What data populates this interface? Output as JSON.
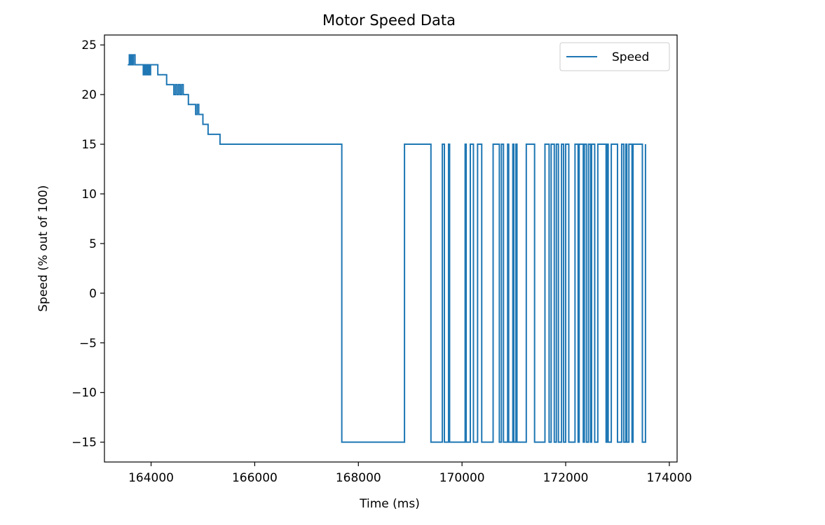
{
  "chart_data": {
    "type": "line",
    "title": "Motor Speed Data",
    "xlabel": "Time (ms)",
    "ylabel": "Speed (% out of 100)",
    "xlim": [
      163100,
      174150
    ],
    "ylim": [
      -17,
      26
    ],
    "xticks": [
      164000,
      166000,
      168000,
      170000,
      172000,
      174000
    ],
    "yticks": [
      -15,
      -10,
      -5,
      0,
      5,
      10,
      15,
      20,
      25
    ],
    "xtick_labels": [
      "164000",
      "166000",
      "168000",
      "170000",
      "172000",
      "174000"
    ],
    "ytick_labels": [
      "−15",
      "−10",
      "−5",
      "0",
      "5",
      "10",
      "15",
      "20",
      "25"
    ],
    "grid": false,
    "legend_position": "upper right",
    "series": [
      {
        "name": "Speed",
        "color": "#1f77b4",
        "step": "post",
        "x": [
          163550,
          163580,
          163600,
          163620,
          163640,
          163660,
          163690,
          163710,
          163740,
          163850,
          163870,
          163890,
          163910,
          163930,
          163950,
          163970,
          163990,
          164000,
          164130,
          164300,
          164440,
          164470,
          164500,
          164530,
          164560,
          164590,
          164620,
          164640,
          164720,
          164860,
          164890,
          164920,
          164960,
          165000,
          165100,
          165180,
          165330,
          167680,
          168890,
          169400,
          169620,
          169660,
          169740,
          169760,
          170060,
          170080,
          170160,
          170220,
          170300,
          170380,
          170600,
          170720,
          170760,
          170800,
          170880,
          170900,
          170980,
          171000,
          171040,
          171060,
          171240,
          171400,
          171600,
          171680,
          171720,
          171780,
          171820,
          171860,
          171920,
          171960,
          172000,
          172060,
          172180,
          172240,
          172260,
          172340,
          172360,
          172400,
          172440,
          172480,
          172500,
          172560,
          172620,
          172780,
          172800,
          172820,
          172880,
          173000,
          173080,
          173120,
          173160,
          173180,
          173220,
          173280,
          173300,
          173480,
          173540
        ],
        "values": [
          23,
          24,
          23,
          24,
          23,
          24,
          23,
          23,
          23,
          22,
          23,
          22,
          23,
          22,
          23,
          22,
          23,
          23,
          22,
          21,
          20,
          21,
          20,
          21,
          20,
          21,
          20,
          20,
          19,
          18,
          19,
          18,
          18,
          17,
          16,
          16,
          15,
          -15,
          15,
          -15,
          15,
          -15,
          15,
          -15,
          15,
          -15,
          15,
          -15,
          15,
          -15,
          15,
          -15,
          15,
          -15,
          15,
          -15,
          15,
          -15,
          15,
          -15,
          15,
          -15,
          15,
          -15,
          15,
          -15,
          15,
          -15,
          15,
          -15,
          15,
          -15,
          15,
          -15,
          15,
          -15,
          15,
          -15,
          15,
          -15,
          15,
          -15,
          15,
          -15,
          15,
          -15,
          15,
          -15,
          15,
          -15,
          15,
          -15,
          15,
          -15,
          15,
          -15,
          15
        ]
      }
    ]
  }
}
